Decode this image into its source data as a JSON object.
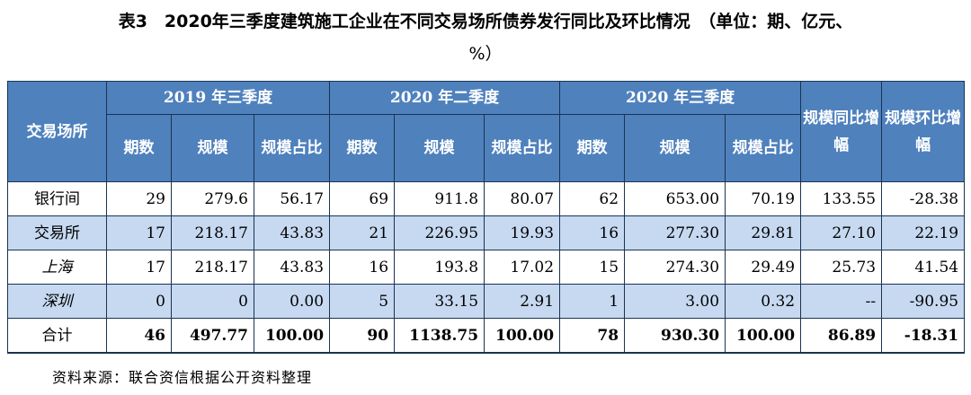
{
  "title": {
    "line1": "表3　2020年三季度建筑施工企业在不同交易场所债券发行同比及环比情况　（单位：期、亿元、",
    "line2": "%）"
  },
  "table": {
    "col_exchange": "交易场所",
    "groups": [
      "2019 年三季度",
      "2020 年二季度",
      "2020 年三季度"
    ],
    "sub_headers": [
      "期数",
      "规模",
      "规模占比"
    ],
    "col_yoy": "规模同比增幅",
    "col_qoq": "规模环比增幅",
    "rows": [
      {
        "name": "银行间",
        "values": [
          "29",
          "279.6",
          "56.17",
          "69",
          "911.8",
          "80.07",
          "62",
          "653.00",
          "70.19",
          "133.55",
          "-28.38"
        ]
      },
      {
        "name": "交易所",
        "values": [
          "17",
          "218.17",
          "43.83",
          "21",
          "226.95",
          "19.93",
          "16",
          "277.30",
          "29.81",
          "27.10",
          "22.19"
        ]
      },
      {
        "name": "上海",
        "values": [
          "17",
          "218.17",
          "43.83",
          "16",
          "193.8",
          "17.02",
          "15",
          "274.30",
          "29.49",
          "25.73",
          "41.54"
        ]
      },
      {
        "name": "深圳",
        "values": [
          "0",
          "0",
          "0.00",
          "5",
          "33.15",
          "2.91",
          "1",
          "3.00",
          "0.32",
          "--",
          "-90.95"
        ]
      },
      {
        "name": "合计",
        "values": [
          "46",
          "497.77",
          "100.00",
          "90",
          "1138.75",
          "100.00",
          "78",
          "930.30",
          "100.00",
          "86.89",
          "-18.31"
        ]
      }
    ]
  },
  "source": "资料来源：联合资信根据公开资料整理"
}
